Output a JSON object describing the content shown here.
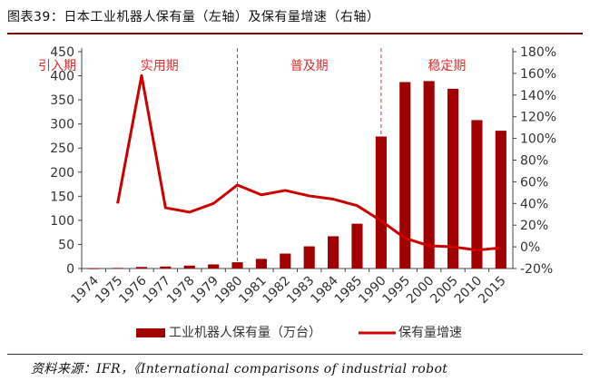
{
  "title": "图表39：日本工业机器人保有量（左轴）及保有量增速（右轴）",
  "source": "资料来源：IFR，《International comparisons of industrial robot",
  "colors": {
    "bar": "#a00000",
    "line": "#cc0000",
    "phase": "#e03030",
    "axis": "#444444",
    "title_rule": "#7a0000"
  },
  "chart_data": {
    "type": "bar",
    "categories": [
      "1974",
      "1975",
      "1976",
      "1977",
      "1978",
      "1979",
      "1980",
      "1981",
      "1982",
      "1983",
      "1984",
      "1985",
      "1990",
      "1995",
      "2000",
      "2005",
      "2010",
      "2015"
    ],
    "series": [
      {
        "name": "工业机器人保有量（万台）",
        "axis": "left",
        "type": "bar",
        "values": [
          0.3,
          1.2,
          3.2,
          4.2,
          6,
          8.5,
          13,
          20,
          31,
          46,
          67,
          93,
          274,
          387,
          389,
          373,
          308,
          286
        ]
      },
      {
        "name": "保有量增速",
        "axis": "right",
        "type": "line",
        "values": [
          null,
          40,
          158,
          36,
          32,
          40,
          57,
          48,
          52,
          47,
          44,
          38,
          24,
          8,
          1,
          0,
          -3,
          -1
        ]
      }
    ],
    "yleft": {
      "min": 0,
      "max": 450,
      "ticks": [
        0,
        50,
        100,
        150,
        200,
        250,
        300,
        350,
        400,
        450
      ]
    },
    "yright": {
      "min": -20,
      "max": 180,
      "ticks": [
        -20,
        0,
        20,
        40,
        60,
        80,
        100,
        120,
        140,
        160,
        180
      ]
    },
    "yright_tick_labels": [
      "-20%",
      "0%",
      "20%",
      "40%",
      "60%",
      "80%",
      "100%",
      "120%",
      "140%",
      "160%",
      "180%"
    ],
    "phases": [
      {
        "label": "引入期",
        "start": -0.5,
        "end": -0.5
      },
      {
        "label": "实用期",
        "start": -0.5,
        "end": 6
      },
      {
        "label": "普及期",
        "start": 6,
        "end": 12
      },
      {
        "label": "稳定期",
        "start": 12,
        "end": 17.5
      }
    ],
    "legend": {
      "bar_label": "工业机器人保有量（万台）",
      "line_label": "保有量增速",
      "position": "bottom"
    }
  }
}
